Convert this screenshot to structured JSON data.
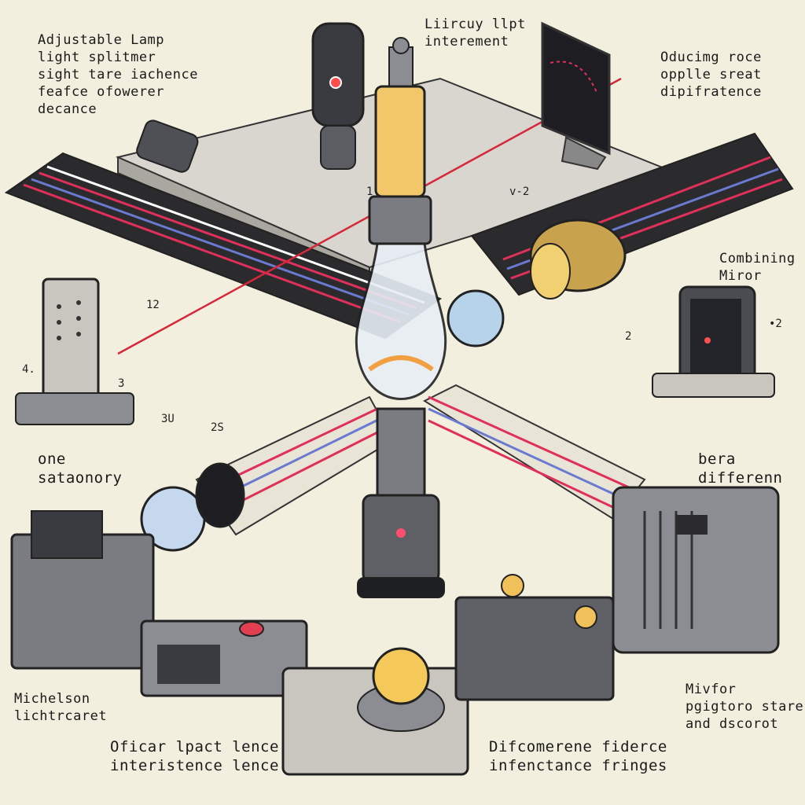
{
  "labels": {
    "adjustable": "Adjustable   Lamp\nlight splitmer\nsight tare iachence\nfeafce ofowerer\ndecance",
    "title": "Liircuy  llpt\ninterement",
    "producing": "Oducimg roce\nopplle sreat\ndipifratence",
    "combining": "Combining\nMiror",
    "one_stationary": "one\nsataonory",
    "beam_diff": "bera\ndifferenn",
    "michelson": "Michelson\nlichtrcaret",
    "mirror_fix": "Mivfor\npgigtoro stare\nand dscorot",
    "optical_lens": "Oficar lpact lence\ninteristence lence",
    "difference": "Difcomerene fiderce\ninfenctance fringes"
  },
  "numbers": {
    "n1": "1",
    "n_v2": "v-2",
    "n12": "12",
    "n4": "4.",
    "n3": "3",
    "n3u": "3U",
    "n2s": "2S",
    "n_dot2": "•2",
    "n_box2": "2"
  },
  "colors": {
    "background": "#f3efdf",
    "beam_red": "#e0305a",
    "beam_blue": "#5a6fc8",
    "metal": "#7d7f85",
    "table": "#d6d4cc"
  }
}
